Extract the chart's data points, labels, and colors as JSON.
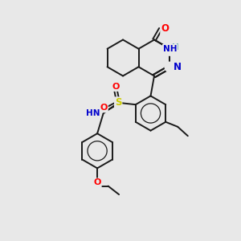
{
  "background_color": "#e8e8e8",
  "bond_color": "#1a1a1a",
  "atom_colors": {
    "O": "#ff0000",
    "N": "#0000cd",
    "S": "#cccc00",
    "H": "#6ab0b0",
    "C": "#1a1a1a"
  },
  "figsize": [
    3.0,
    3.0
  ],
  "dpi": 100
}
